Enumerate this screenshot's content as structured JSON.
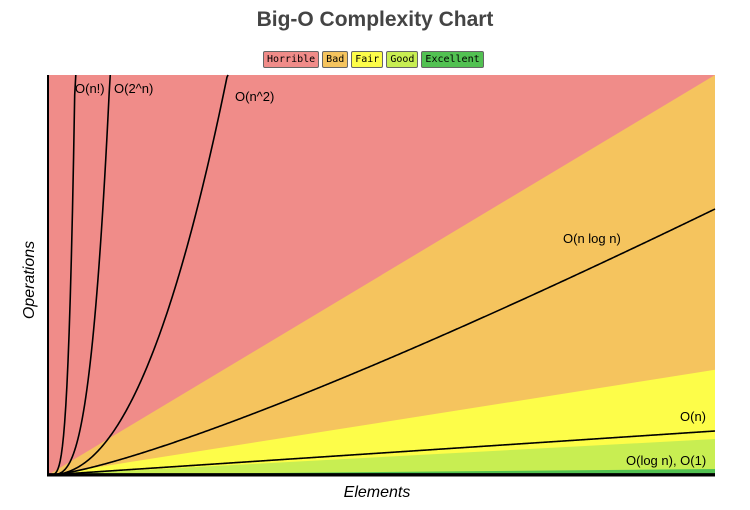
{
  "chart_data": {
    "type": "area",
    "title": "Big-O Complexity Chart",
    "xlabel": "Elements",
    "ylabel": "Operations",
    "grid": false,
    "legend_position": "top-center",
    "legend": [
      {
        "label": "Horrible",
        "color": "#f08c89"
      },
      {
        "label": "Bad",
        "color": "#f5c45e"
      },
      {
        "label": "Fair",
        "color": "#fdfd49"
      },
      {
        "label": "Good",
        "color": "#c8ee52"
      },
      {
        "label": "Excellent",
        "color": "#52c152"
      }
    ],
    "xlim": [
      0,
      100
    ],
    "ylim": [
      0,
      1000
    ],
    "regions": [
      {
        "category": "Horrible",
        "top_at_xmax": 1000
      },
      {
        "category": "Bad",
        "top_at_xmax": 1000
      },
      {
        "category": "Fair",
        "top_at_xmax": 263
      },
      {
        "category": "Good",
        "top_at_xmax": 90
      },
      {
        "category": "Excellent",
        "top_at_xmax": 15
      }
    ],
    "series": [
      {
        "name": "O(n!)",
        "formula": "n!"
      },
      {
        "name": "O(2^n)",
        "formula": "2^n"
      },
      {
        "name": "O(n^2)",
        "formula": "n^2"
      },
      {
        "name": "O(n log n)",
        "formula": "n log2 n"
      },
      {
        "name": "O(n)",
        "formula": "n"
      },
      {
        "name": "O(log n), O(1)",
        "formula": "log n, 1"
      }
    ]
  }
}
